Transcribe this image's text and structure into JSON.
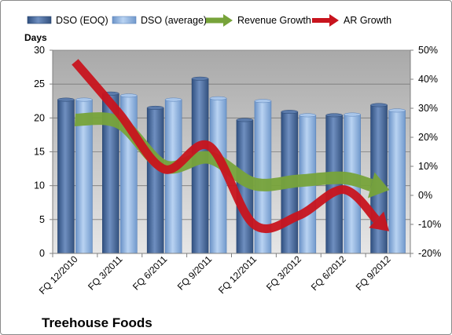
{
  "chart_data": {
    "type": "bar",
    "title": "Treehouse Foods",
    "ylabel": "Days",
    "categories": [
      "FQ 12/2010",
      "FQ 3/2011",
      "FQ 6/2011",
      "FQ 9/2011",
      "FQ 12/2011",
      "FQ 3/2012",
      "FQ 6/2012",
      "FQ 9/2012"
    ],
    "ylim": [
      0,
      30
    ],
    "yticks": [
      "0",
      "5",
      "10",
      "15",
      "20",
      "25",
      "30"
    ],
    "y2lim": [
      -20,
      50
    ],
    "y2ticks": [
      "-20%",
      "-10%",
      "0%",
      "10%",
      "20%",
      "30%",
      "40%",
      "50%"
    ],
    "grid": true,
    "legend_position": "top",
    "series": [
      {
        "name": "DSO (EOQ)",
        "kind": "bar",
        "axis": "left",
        "color": "#4f6fa0",
        "values": [
          22.7,
          23.6,
          21.5,
          25.8,
          19.7,
          20.9,
          20.4,
          21.9
        ]
      },
      {
        "name": "DSO (average)",
        "kind": "bar",
        "axis": "left",
        "color": "#8fb4e3",
        "values": [
          22.7,
          23.3,
          22.7,
          22.9,
          22.5,
          20.4,
          20.5,
          21.1
        ]
      },
      {
        "name": "Revenue Growth",
        "kind": "arrow-line",
        "axis": "right",
        "color": "#77a33a",
        "values": [
          26,
          25,
          10,
          13,
          4,
          5,
          6,
          2
        ]
      },
      {
        "name": "AR Growth",
        "kind": "arrow-line",
        "axis": "right",
        "color": "#c8141e",
        "values": [
          46,
          28,
          9,
          17,
          -10,
          -7,
          2,
          -12
        ]
      }
    ]
  }
}
